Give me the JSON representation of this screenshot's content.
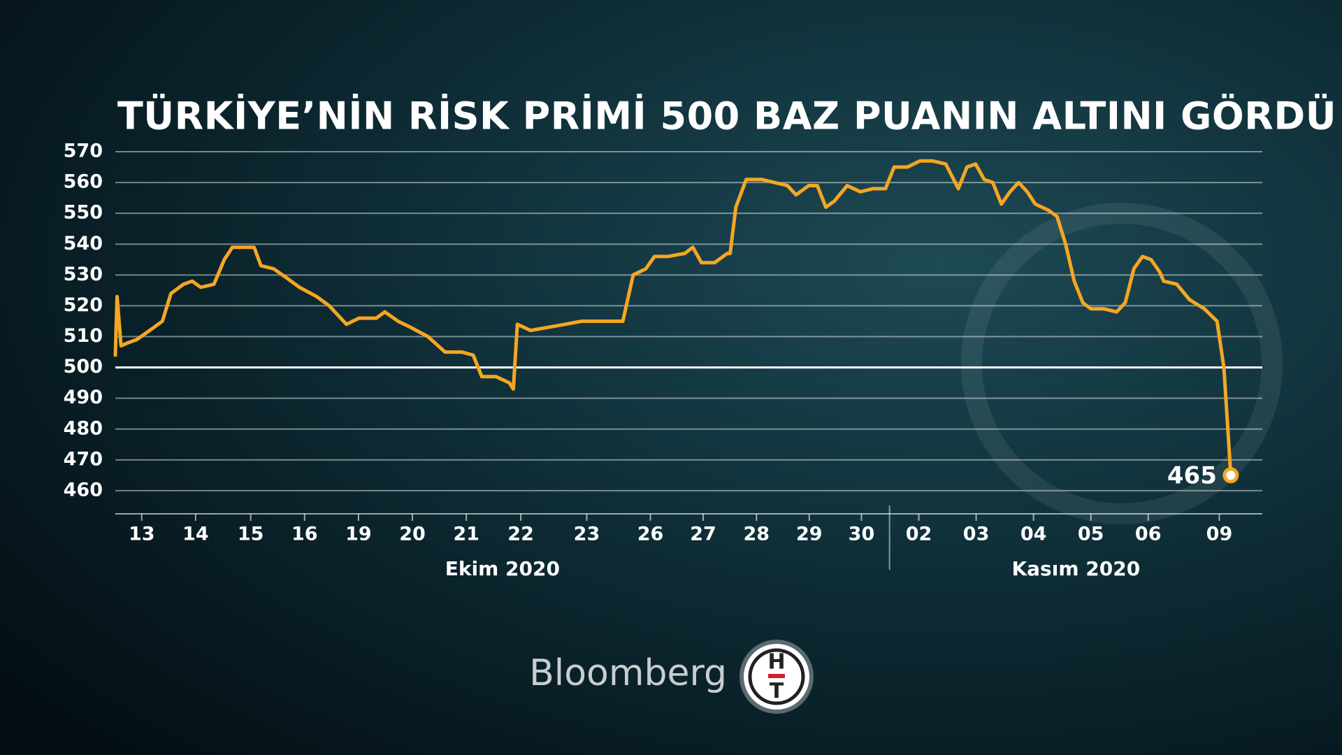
{
  "chart_data": {
    "type": "line",
    "title": "TÜRKİYE’NİN RİSK PRİMİ 500 BAZ PUANIN ALTINI GÖRDÜ",
    "xlim": [
      0,
      20
    ],
    "xticks": [
      {
        "value": 0.46,
        "label": "13"
      },
      {
        "value": 1.4,
        "label": "14"
      },
      {
        "value": 2.36,
        "label": "15"
      },
      {
        "value": 3.3,
        "label": "16"
      },
      {
        "value": 4.24,
        "label": "19"
      },
      {
        "value": 5.18,
        "label": "20"
      },
      {
        "value": 6.12,
        "label": "21"
      },
      {
        "value": 7.07,
        "label": "22"
      },
      {
        "value": 8.22,
        "label": "23"
      },
      {
        "value": 9.33,
        "label": "26"
      },
      {
        "value": 10.25,
        "label": "27"
      },
      {
        "value": 11.18,
        "label": "28"
      },
      {
        "value": 12.1,
        "label": "29"
      },
      {
        "value": 13.01,
        "label": "30"
      },
      {
        "value": 14.01,
        "label": "02"
      },
      {
        "value": 15.01,
        "label": "03"
      },
      {
        "value": 16.01,
        "label": "04"
      },
      {
        "value": 17.01,
        "label": "05"
      },
      {
        "value": 18.01,
        "label": "06"
      },
      {
        "value": 19.25,
        "label": "09"
      }
    ],
    "x_groups": [
      {
        "label": "Ekim 2020",
        "start": 0,
        "end": 13.5
      },
      {
        "label": "Kasım 2020",
        "start": 13.5,
        "end": 20
      }
    ],
    "ylim": [
      452.5,
      570
    ],
    "yticks": [
      460,
      470,
      480,
      490,
      500,
      510,
      520,
      530,
      540,
      550,
      560,
      570
    ],
    "grid": true,
    "hlines": [
      {
        "value": 500,
        "color": "#ffffff"
      }
    ],
    "series": [
      {
        "color": "#f5a623",
        "x": [
          0,
          0.03,
          0.1,
          0.22,
          0.37,
          0.6,
          0.82,
          0.97,
          1.19,
          1.34,
          1.49,
          1.72,
          1.9,
          2.04,
          2.24,
          2.42,
          2.54,
          2.76,
          2.99,
          3.21,
          3.51,
          3.73,
          4.03,
          4.25,
          4.55,
          4.7,
          4.93,
          5.15,
          5.45,
          5.75,
          6.04,
          6.24,
          6.39,
          6.64,
          6.87,
          6.94,
          7.01,
          7.24,
          7.54,
          7.84,
          8.13,
          8.43,
          8.85,
          9.03,
          9.25,
          9.4,
          9.63,
          9.93,
          10.07,
          10.22,
          10.45,
          10.67,
          10.72,
          10.82,
          11.0,
          11.27,
          11.49,
          11.72,
          11.87,
          12.09,
          12.24,
          12.39,
          12.54,
          12.76,
          12.99,
          13.21,
          13.43,
          13.58,
          13.81,
          14.03,
          14.25,
          14.48,
          14.7,
          14.85,
          15.0,
          15.15,
          15.3,
          15.45,
          15.6,
          15.75,
          15.9,
          16.04,
          16.27,
          16.42,
          16.57,
          16.72,
          16.87,
          17.01,
          17.24,
          17.46,
          17.61,
          17.76,
          17.91,
          18.06,
          18.21,
          18.28,
          18.51,
          18.73,
          18.99,
          19.21,
          19.33,
          19.45
        ],
        "values": [
          504,
          523,
          507,
          508,
          509,
          512,
          515,
          524,
          527,
          528,
          526,
          527,
          535,
          539,
          539,
          539,
          533,
          532,
          529,
          526,
          523,
          520,
          514,
          516,
          516,
          518,
          515,
          513,
          510,
          505,
          505,
          504,
          497,
          497,
          495,
          493,
          514,
          512,
          513,
          514,
          515,
          515,
          515,
          530,
          532,
          536,
          536,
          537,
          539,
          534,
          534,
          537,
          537,
          552,
          561,
          561,
          560,
          559,
          556,
          559,
          559,
          552,
          554,
          559,
          557,
          558,
          558,
          565,
          565,
          567,
          567,
          566,
          558,
          565,
          566,
          561,
          560,
          553,
          557,
          560,
          557,
          553,
          551,
          549,
          540,
          528,
          521,
          519,
          519,
          518,
          521,
          532,
          536,
          535,
          531,
          528,
          527,
          522,
          519,
          515,
          500,
          465
        ]
      }
    ]
  },
  "branding": {
    "name": "Bloomberg",
    "mark_top": "H",
    "mark_bottom": "T"
  }
}
